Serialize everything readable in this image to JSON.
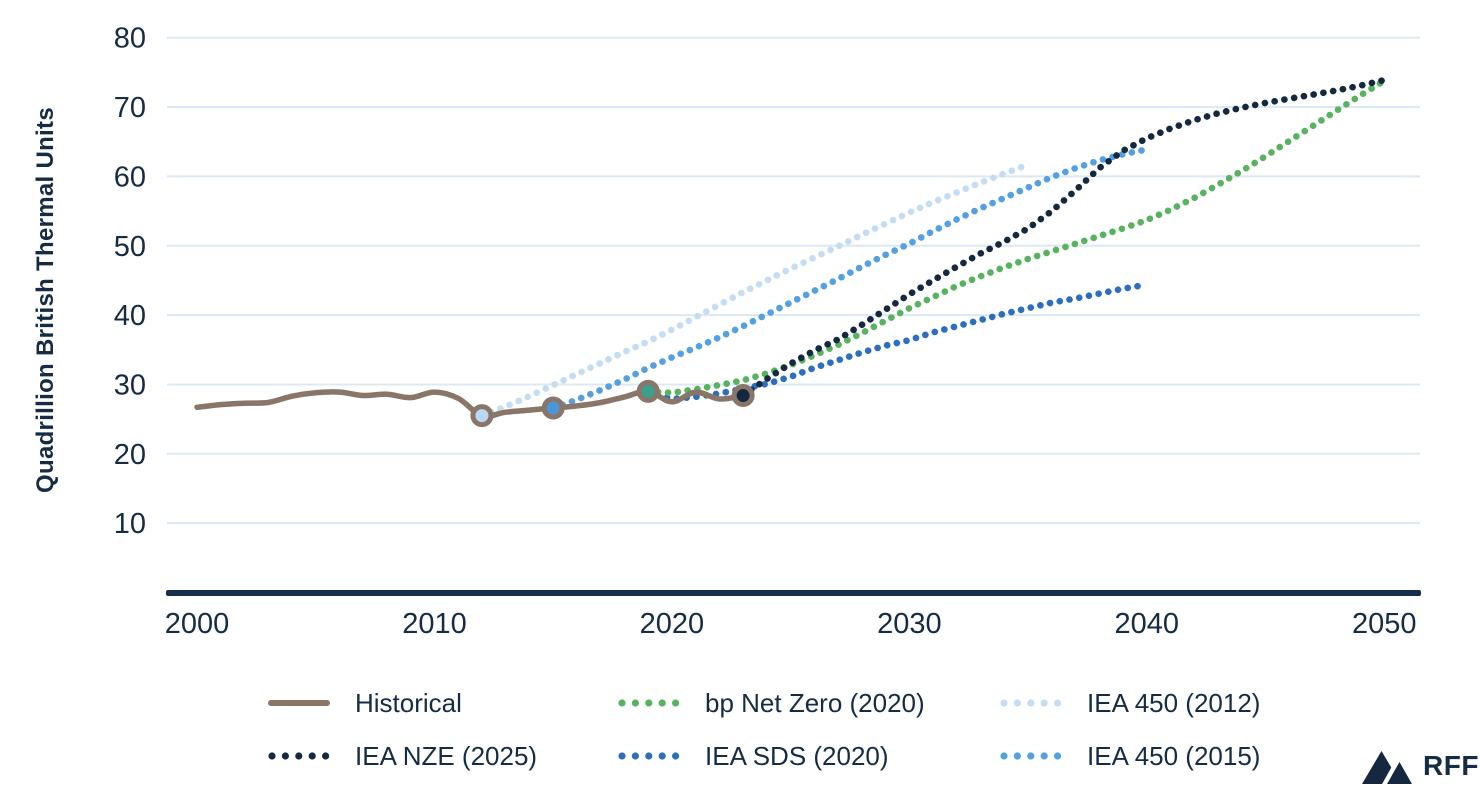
{
  "chart_data": {
    "type": "line",
    "title": "",
    "xlabel": "",
    "ylabel": "Quadrillion British Thermal Units",
    "x_ticks": [
      2000,
      2010,
      2020,
      2030,
      2040,
      2050
    ],
    "y_ticks": [
      10,
      20,
      30,
      40,
      50,
      60,
      70,
      80
    ],
    "xlim": [
      1998.8,
      2051.5
    ],
    "ylim": [
      0,
      80
    ],
    "grid": "horizontal",
    "legend_position": "bottom",
    "colors": {
      "gridline": "#dbe8f6",
      "axis": "#16304a",
      "text": "#152c44",
      "marker_ring": "#8a7668"
    },
    "series": [
      {
        "name": "IEA 450 (2012)",
        "style": "dotted",
        "color": "#c4ddf3",
        "points": [
          [
            2012,
            25.5
          ],
          [
            2013,
            26.8
          ],
          [
            2014,
            28.3
          ],
          [
            2015,
            29.9
          ],
          [
            2016,
            31.5
          ],
          [
            2017,
            33.1
          ],
          [
            2018,
            34.7
          ],
          [
            2019,
            36.2
          ],
          [
            2020,
            37.9
          ],
          [
            2021,
            39.7
          ],
          [
            2022,
            41.5
          ],
          [
            2023,
            43.3
          ],
          [
            2024,
            45.0
          ],
          [
            2025,
            46.7
          ],
          [
            2026,
            48.3
          ],
          [
            2027,
            49.9
          ],
          [
            2028,
            51.6
          ],
          [
            2029,
            53.2
          ],
          [
            2030,
            54.8
          ],
          [
            2031,
            56.3
          ],
          [
            2032,
            57.7
          ],
          [
            2033,
            59.1
          ],
          [
            2034,
            60.4
          ],
          [
            2035,
            61.7
          ]
        ]
      },
      {
        "name": "IEA 450 (2015)",
        "style": "dotted",
        "color": "#54a0e0",
        "points": [
          [
            2015,
            26.6
          ],
          [
            2016,
            27.8
          ],
          [
            2017,
            29.2
          ],
          [
            2018,
            30.7
          ],
          [
            2019,
            32.4
          ],
          [
            2020,
            33.9
          ],
          [
            2021,
            35.3
          ],
          [
            2022,
            36.8
          ],
          [
            2023,
            38.4
          ],
          [
            2024,
            40.1
          ],
          [
            2025,
            41.8
          ],
          [
            2026,
            43.5
          ],
          [
            2027,
            45.2
          ],
          [
            2028,
            47.0
          ],
          [
            2029,
            48.7
          ],
          [
            2030,
            50.3
          ],
          [
            2031,
            52.1
          ],
          [
            2032,
            53.8
          ],
          [
            2033,
            55.4
          ],
          [
            2034,
            56.9
          ],
          [
            2035,
            58.4
          ],
          [
            2036,
            59.9
          ],
          [
            2037,
            61.2
          ],
          [
            2038,
            62.3
          ],
          [
            2039,
            63.2
          ],
          [
            2040,
            63.9
          ]
        ]
      },
      {
        "name": "IEA SDS (2020)",
        "style": "dotted",
        "color": "#2e6fbd",
        "points": [
          [
            2019,
            29.0
          ],
          [
            2020,
            27.9
          ],
          [
            2021,
            28.2
          ],
          [
            2022,
            28.7
          ],
          [
            2023,
            29.4
          ],
          [
            2024,
            30.1
          ],
          [
            2025,
            31.1
          ],
          [
            2026,
            32.4
          ],
          [
            2027,
            33.5
          ],
          [
            2028,
            34.6
          ],
          [
            2029,
            35.6
          ],
          [
            2030,
            36.4
          ],
          [
            2031,
            37.5
          ],
          [
            2032,
            38.4
          ],
          [
            2033,
            39.3
          ],
          [
            2034,
            40.2
          ],
          [
            2035,
            41.0
          ],
          [
            2036,
            41.8
          ],
          [
            2037,
            42.4
          ],
          [
            2038,
            43.1
          ],
          [
            2039,
            43.8
          ],
          [
            2040,
            44.4
          ]
        ]
      },
      {
        "name": "bp Net Zero (2020)",
        "style": "dotted",
        "color": "#58b25f",
        "points": [
          [
            2019,
            29.0
          ],
          [
            2020,
            28.8
          ],
          [
            2021,
            29.3
          ],
          [
            2022,
            29.9
          ],
          [
            2023,
            30.6
          ],
          [
            2024,
            31.6
          ],
          [
            2025,
            32.8
          ],
          [
            2026,
            34.2
          ],
          [
            2027,
            35.7
          ],
          [
            2028,
            37.4
          ],
          [
            2029,
            39.2
          ],
          [
            2030,
            41.0
          ],
          [
            2031,
            42.6
          ],
          [
            2032,
            44.2
          ],
          [
            2033,
            45.6
          ],
          [
            2034,
            46.9
          ],
          [
            2035,
            48.1
          ],
          [
            2036,
            49.2
          ],
          [
            2037,
            50.3
          ],
          [
            2038,
            51.4
          ],
          [
            2039,
            52.5
          ],
          [
            2040,
            53.7
          ],
          [
            2041,
            55.2
          ],
          [
            2042,
            56.9
          ],
          [
            2043,
            58.8
          ],
          [
            2044,
            60.8
          ],
          [
            2045,
            62.9
          ],
          [
            2046,
            65.1
          ],
          [
            2047,
            67.3
          ],
          [
            2048,
            69.5
          ],
          [
            2049,
            71.7
          ],
          [
            2050,
            73.8
          ]
        ]
      },
      {
        "name": "IEA NZE (2025)",
        "style": "dotted",
        "color": "#14293f",
        "points": [
          [
            2023,
            28.4
          ],
          [
            2024,
            30.8
          ],
          [
            2025,
            33.0
          ],
          [
            2026,
            34.9
          ],
          [
            2027,
            36.5
          ],
          [
            2028,
            38.6
          ],
          [
            2029,
            40.8
          ],
          [
            2030,
            43.0
          ],
          [
            2031,
            45.0
          ],
          [
            2032,
            47.0
          ],
          [
            2033,
            48.9
          ],
          [
            2034,
            50.6
          ],
          [
            2035,
            52.5
          ],
          [
            2036,
            55.0
          ],
          [
            2037,
            58.0
          ],
          [
            2038,
            61.2
          ],
          [
            2039,
            63.7
          ],
          [
            2040,
            65.5
          ],
          [
            2041,
            66.9
          ],
          [
            2042,
            68.1
          ],
          [
            2043,
            69.1
          ],
          [
            2044,
            69.9
          ],
          [
            2045,
            70.6
          ],
          [
            2046,
            71.2
          ],
          [
            2047,
            71.8
          ],
          [
            2048,
            72.4
          ],
          [
            2049,
            73.1
          ],
          [
            2050,
            73.9
          ]
        ]
      },
      {
        "name": "Historical",
        "style": "solid",
        "color": "#8a7668",
        "points": [
          [
            2000,
            26.7
          ],
          [
            2001,
            27.1
          ],
          [
            2002,
            27.3
          ],
          [
            2003,
            27.4
          ],
          [
            2004,
            28.3
          ],
          [
            2005,
            28.8
          ],
          [
            2006,
            28.9
          ],
          [
            2007,
            28.4
          ],
          [
            2008,
            28.6
          ],
          [
            2009,
            28.1
          ],
          [
            2010,
            28.9
          ],
          [
            2011,
            28.0
          ],
          [
            2012,
            25.5
          ],
          [
            2013,
            26.0
          ],
          [
            2014,
            26.3
          ],
          [
            2015,
            26.6
          ],
          [
            2016,
            26.9
          ],
          [
            2017,
            27.4
          ],
          [
            2018,
            28.2
          ],
          [
            2019,
            29.0
          ],
          [
            2020,
            27.5
          ],
          [
            2021,
            28.9
          ],
          [
            2022,
            27.9
          ],
          [
            2023,
            28.4
          ]
        ]
      }
    ],
    "markers": [
      {
        "x": 2012,
        "y": 25.5,
        "fill": "#b9d8f2",
        "label": "IEA 450 (2012) start"
      },
      {
        "x": 2015,
        "y": 26.6,
        "fill": "#4b96d8",
        "label": "IEA 450 (2015) start"
      },
      {
        "x": 2019,
        "y": 29.0,
        "fill": "#3a9f8e",
        "label": "bp Net Zero (2020) start"
      },
      {
        "x": 2023,
        "y": 28.4,
        "fill": "#13283f",
        "label": "IEA NZE (2025) start"
      }
    ],
    "legend_rows": [
      [
        "Historical",
        "bp Net Zero (2020)",
        "IEA 450 (2012)"
      ],
      [
        "IEA NZE (2025)",
        "IEA SDS (2020)",
        "IEA 450 (2015)"
      ]
    ]
  },
  "branding": {
    "logo_text": "RFF"
  }
}
